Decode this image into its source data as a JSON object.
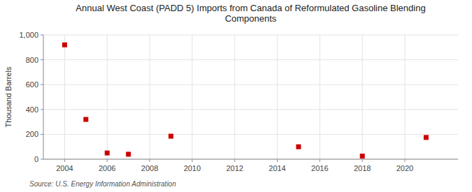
{
  "chart_data": {
    "type": "scatter",
    "title": "Annual West Coast (PADD 5) Imports from Canada of Reformulated Gasoline Blending\nComponents",
    "y_label": "Thousand Barrels",
    "annotations": [
      "Source: U.S. Energy Information Administration"
    ],
    "x": [
      2004,
      2005,
      2006,
      2007,
      2009,
      2015,
      2018,
      2021
    ],
    "values": [
      920,
      320,
      50,
      40,
      185,
      100,
      25,
      175
    ],
    "color": "#cc0000",
    "marker": "square",
    "xlim": [
      2003.0,
      2022.5
    ],
    "ylim": [
      0,
      1000
    ],
    "xticks": [
      2004,
      2006,
      2008,
      2010,
      2012,
      2014,
      2016,
      2018,
      2020
    ],
    "yticks": [
      0,
      200,
      400,
      600,
      800,
      {
        "value": 1000,
        "label": "1,000"
      }
    ],
    "grid": true
  }
}
